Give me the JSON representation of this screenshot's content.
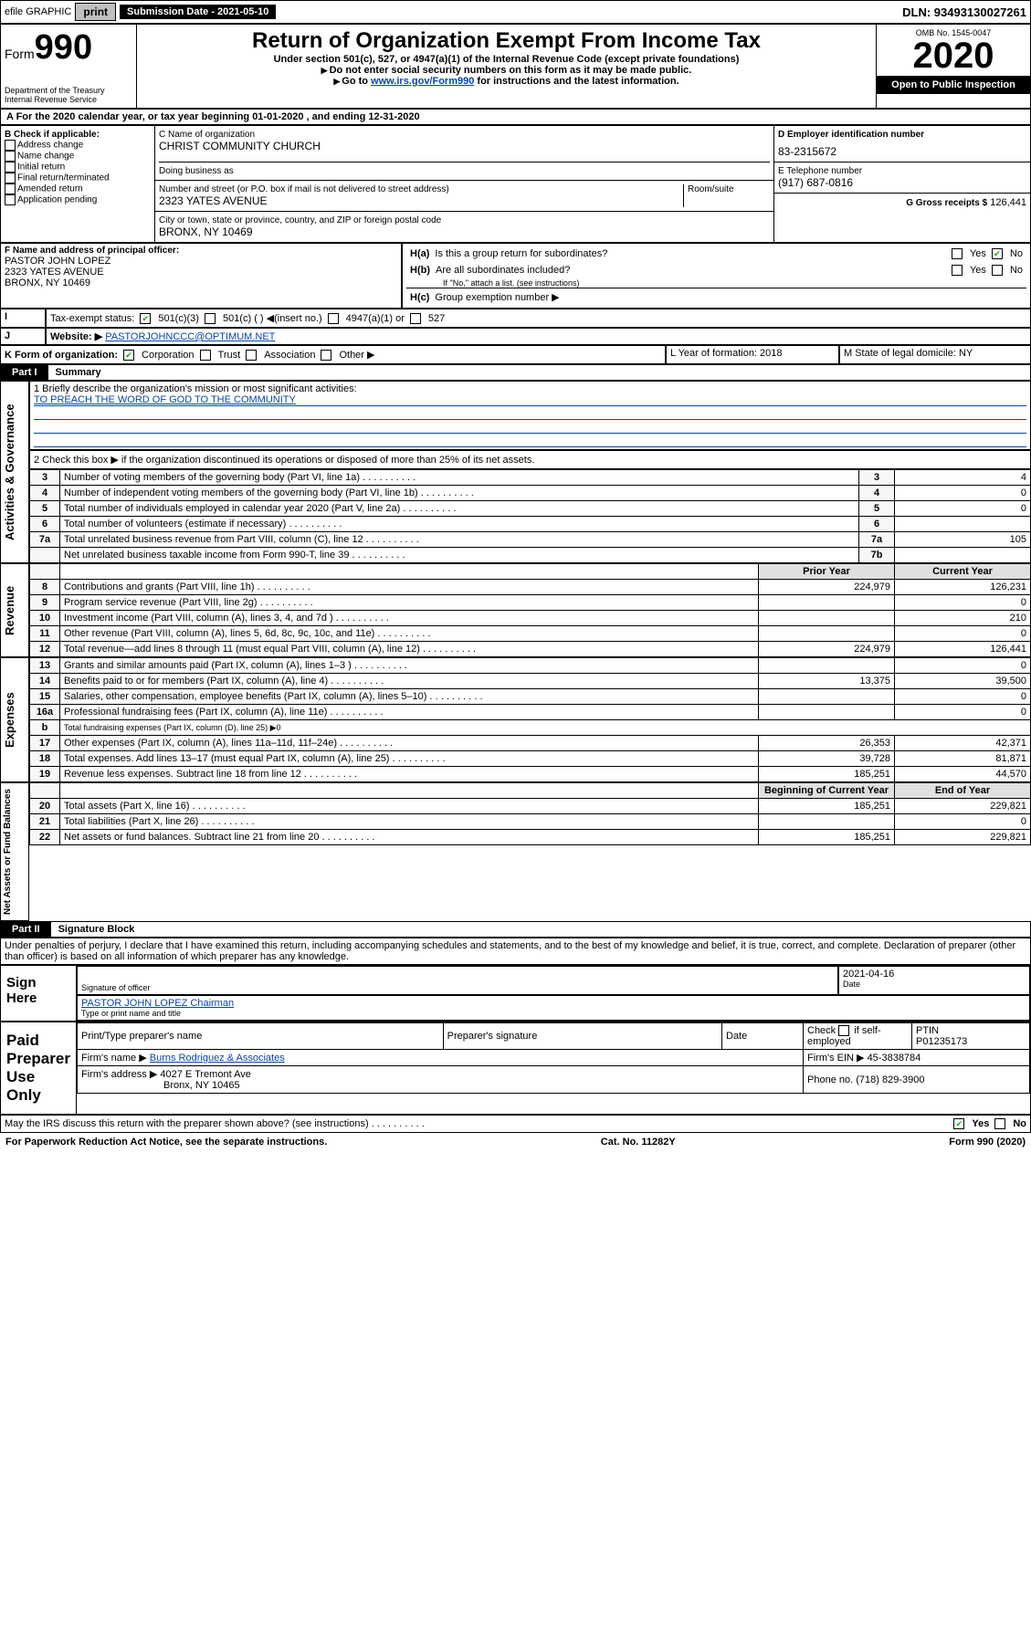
{
  "top": {
    "efile": "efile GRAPHIC",
    "print": "print",
    "subdate_lbl": "Submission Date - 2021-05-10",
    "dln": "DLN: 93493130027261"
  },
  "hdr": {
    "form_prefix": "Form",
    "form_no": "990",
    "dept": "Department of the Treasury",
    "irs": "Internal Revenue Service",
    "title": "Return of Organization Exempt From Income Tax",
    "sub1": "Under section 501(c), 527, or 4947(a)(1) of the Internal Revenue Code (except private foundations)",
    "sub2": "Do not enter social security numbers on this form as it may be made public.",
    "sub3a": "Go to ",
    "sub3link": "www.irs.gov/Form990",
    "sub3b": " for instructions and the latest information.",
    "omb": "OMB No. 1545-0047",
    "year": "2020",
    "badge": "Open to Public Inspection"
  },
  "period": "A For the 2020 calendar year, or tax year beginning 01-01-2020      , and ending 12-31-2020",
  "B": {
    "hdr": "B Check if applicable:",
    "items": [
      "Address change",
      "Name change",
      "Initial return",
      "Final return/terminated",
      "Amended return",
      "Application pending"
    ]
  },
  "C": {
    "name_lbl": "C Name of organization",
    "name": "CHRIST COMMUNITY CHURCH",
    "dba_lbl": "Doing business as",
    "addr_lbl": "Number and street (or P.O. box if mail is not delivered to street address)",
    "room_lbl": "Room/suite",
    "addr": "2323 YATES AVENUE",
    "city_lbl": "City or town, state or province, country, and ZIP or foreign postal code",
    "city": "BRONX, NY  10469"
  },
  "D": {
    "lbl": "D Employer identification number",
    "val": "83-2315672"
  },
  "E": {
    "lbl": "E Telephone number",
    "val": "(917) 687-0816"
  },
  "G": {
    "lbl": "G Gross receipts $",
    "val": "126,441"
  },
  "F": {
    "lbl": "F  Name and address of principal officer:",
    "name": "PASTOR JOHN LOPEZ",
    "addr": "2323 YATES AVENUE",
    "city": "BRONX, NY  10469"
  },
  "H": {
    "a": "Is this a group return for subordinates?",
    "b": "Are all subordinates included?",
    "bnote": "If \"No,\" attach a list. (see instructions)",
    "c": "Group exemption number ▶",
    "yes": "Yes",
    "no": "No"
  },
  "I": {
    "lbl": "Tax-exempt status:",
    "o1": "501(c)(3)",
    "o2": "501(c) (  ) ◀(insert no.)",
    "o3": "4947(a)(1) or",
    "o4": "527"
  },
  "J": {
    "lbl": "Website: ▶",
    "val": "PASTORJOHNCCC@OPTIMUM.NET"
  },
  "K": {
    "lbl": "K Form of organization:",
    "o1": "Corporation",
    "o2": "Trust",
    "o3": "Association",
    "o4": "Other ▶"
  },
  "L": {
    "lbl": "L Year of formation: 2018"
  },
  "M": {
    "lbl": "M State of legal domicile: NY"
  },
  "part1": {
    "tag": "Part I",
    "title": "Summary"
  },
  "s1": {
    "q": "1  Briefly describe the organization's mission or most significant activities:",
    "a": "TO PREACH THE WORD OF GOD TO THE COMMUNITY"
  },
  "s2": "2   Check this box ▶        if the organization discontinued its operations or disposed of more than 25% of its net assets.",
  "govlines": [
    {
      "n": "3",
      "t": "Number of voting members of the governing body (Part VI, line 1a)",
      "b": "3",
      "v": "4"
    },
    {
      "n": "4",
      "t": "Number of independent voting members of the governing body (Part VI, line 1b)",
      "b": "4",
      "v": "0"
    },
    {
      "n": "5",
      "t": "Total number of individuals employed in calendar year 2020 (Part V, line 2a)",
      "b": "5",
      "v": "0"
    },
    {
      "n": "6",
      "t": "Total number of volunteers (estimate if necessary)",
      "b": "6",
      "v": ""
    },
    {
      "n": "7a",
      "t": "Total unrelated business revenue from Part VIII, column (C), line 12",
      "b": "7a",
      "v": "105"
    },
    {
      "n": "",
      "t": "Net unrelated business taxable income from Form 990-T, line 39",
      "b": "7b",
      "v": ""
    }
  ],
  "revhdr": {
    "py": "Prior Year",
    "cy": "Current Year"
  },
  "rev": [
    {
      "n": "8",
      "t": "Contributions and grants (Part VIII, line 1h)",
      "p": "224,979",
      "c": "126,231"
    },
    {
      "n": "9",
      "t": "Program service revenue (Part VIII, line 2g)",
      "p": "",
      "c": "0"
    },
    {
      "n": "10",
      "t": "Investment income (Part VIII, column (A), lines 3, 4, and 7d )",
      "p": "",
      "c": "210"
    },
    {
      "n": "11",
      "t": "Other revenue (Part VIII, column (A), lines 5, 6d, 8c, 9c, 10c, and 11e)",
      "p": "",
      "c": "0"
    },
    {
      "n": "12",
      "t": "Total revenue—add lines 8 through 11 (must equal Part VIII, column (A), line 12)",
      "p": "224,979",
      "c": "126,441"
    }
  ],
  "exp": [
    {
      "n": "13",
      "t": "Grants and similar amounts paid (Part IX, column (A), lines 1–3 )",
      "p": "",
      "c": "0"
    },
    {
      "n": "14",
      "t": "Benefits paid to or for members (Part IX, column (A), line 4)",
      "p": "13,375",
      "c": "39,500"
    },
    {
      "n": "15",
      "t": "Salaries, other compensation, employee benefits (Part IX, column (A), lines 5–10)",
      "p": "",
      "c": "0"
    },
    {
      "n": "16a",
      "t": "Professional fundraising fees (Part IX, column (A), line 11e)",
      "p": "",
      "c": "0"
    },
    {
      "n": "b",
      "t": "Total fundraising expenses (Part IX, column (D), line 25) ▶0",
      "p": "—",
      "c": "—"
    },
    {
      "n": "17",
      "t": "Other expenses (Part IX, column (A), lines 11a–11d, 11f–24e)",
      "p": "26,353",
      "c": "42,371"
    },
    {
      "n": "18",
      "t": "Total expenses. Add lines 13–17 (must equal Part IX, column (A), line 25)",
      "p": "39,728",
      "c": "81,871"
    },
    {
      "n": "19",
      "t": "Revenue less expenses. Subtract line 18 from line 12",
      "p": "185,251",
      "c": "44,570"
    }
  ],
  "nethdr": {
    "b": "Beginning of Current Year",
    "e": "End of Year"
  },
  "net": [
    {
      "n": "20",
      "t": "Total assets (Part X, line 16)",
      "p": "185,251",
      "c": "229,821"
    },
    {
      "n": "21",
      "t": "Total liabilities (Part X, line 26)",
      "p": "",
      "c": "0"
    },
    {
      "n": "22",
      "t": "Net assets or fund balances. Subtract line 21 from line 20",
      "p": "185,251",
      "c": "229,821"
    }
  ],
  "part2": {
    "tag": "Part II",
    "title": "Signature Block"
  },
  "perjury": "Under penalties of perjury, I declare that I have examined this return, including accompanying schedules and statements, and to the best of my knowledge and belief, it is true, correct, and complete. Declaration of preparer (other than officer) is based on all information of which preparer has any knowledge.",
  "sign": {
    "here": "Sign Here",
    "sigoff": "Signature of officer",
    "date": "2021-04-16",
    "datelbl": "Date",
    "name": "PASTOR JOHN LOPEZ  Chairman",
    "typelbl": "Type or print name and title"
  },
  "paid": {
    "side": "Paid Preparer Use Only",
    "h1": "Print/Type preparer's name",
    "h2": "Preparer's signature",
    "h3": "Date",
    "h4a": "Check",
    "h4b": "if self-employed",
    "h5": "PTIN",
    "ptin": "P01235173",
    "firm_lbl": "Firm's name  ▶",
    "firm": "Burns Rodriguez & Associates",
    "ein_lbl": "Firm's EIN ▶",
    "ein": "45-3838784",
    "addr_lbl": "Firm's address ▶",
    "addr": "4027 E Tremont Ave",
    "city": "Bronx, NY  10465",
    "phone_lbl": "Phone no.",
    "phone": "(718) 829-3900"
  },
  "discuss": {
    "q": "May the IRS discuss this return with the preparer shown above? (see instructions)",
    "yes": "Yes",
    "no": "No"
  },
  "foot": {
    "l": "For Paperwork Reduction Act Notice, see the separate instructions.",
    "c": "Cat. No. 11282Y",
    "r": "Form 990 (2020)"
  },
  "sidetabs": {
    "ag": "Activities & Governance",
    "rev": "Revenue",
    "exp": "Expenses",
    "net": "Net Assets or Fund Balances"
  }
}
